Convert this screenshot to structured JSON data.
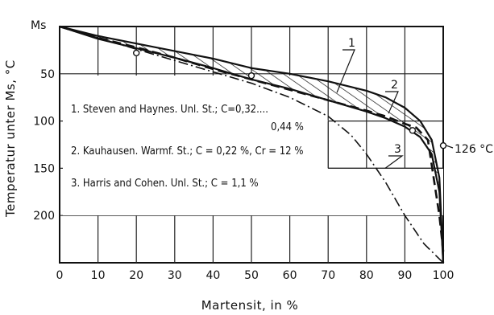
{
  "chart_data": {
    "type": "line",
    "xlabel": "Martensit, in %",
    "ylabel": "Temperatur unter Ms, °C",
    "y_top_label": "Ms",
    "xlim": [
      0,
      100
    ],
    "ylim": [
      0,
      250
    ],
    "y_inverted": true,
    "x_ticks": [
      0,
      10,
      20,
      30,
      40,
      50,
      60,
      70,
      80,
      90,
      100
    ],
    "y_ticks": [
      50,
      100,
      150,
      200
    ],
    "grid": true,
    "legend": [
      "1. Steven and Haynes. Unl. St.; C=0,32....",
      "0,44 %",
      "2. Kauhausen. Warmf. St.; C = 0,22 %, Cr = 12 %",
      "3. Harris and Cohen. Unl. St.; C = 1,1 %"
    ],
    "series": [
      {
        "name": "1",
        "style": "band-upper",
        "points": [
          [
            0,
            0
          ],
          [
            10,
            10
          ],
          [
            20,
            18
          ],
          [
            30,
            26
          ],
          [
            40,
            34
          ],
          [
            50,
            44
          ],
          [
            60,
            50
          ],
          [
            70,
            58
          ],
          [
            80,
            68
          ],
          [
            85,
            75
          ],
          [
            90,
            86
          ],
          [
            94,
            100
          ],
          [
            97,
            120
          ],
          [
            99,
            160
          ],
          [
            100,
            250
          ]
        ]
      },
      {
        "name": "1",
        "style": "band-lower",
        "points": [
          [
            0,
            0
          ],
          [
            10,
            13
          ],
          [
            20,
            23
          ],
          [
            30,
            33
          ],
          [
            40,
            44
          ],
          [
            50,
            56
          ],
          [
            60,
            66
          ],
          [
            70,
            78
          ],
          [
            80,
            90
          ],
          [
            85,
            97
          ],
          [
            90,
            106
          ],
          [
            94,
            117
          ],
          [
            97,
            135
          ],
          [
            99,
            175
          ],
          [
            100,
            250
          ]
        ]
      },
      {
        "name": "2",
        "style": "dashed",
        "points": [
          [
            0,
            0
          ],
          [
            10,
            12
          ],
          [
            20,
            22
          ],
          [
            30,
            33
          ],
          [
            40,
            45
          ],
          [
            50,
            56
          ],
          [
            60,
            67
          ],
          [
            70,
            78
          ],
          [
            80,
            89
          ],
          [
            85,
            95
          ],
          [
            90,
            103
          ],
          [
            93,
            107
          ],
          [
            96,
            120
          ],
          [
            99,
            200
          ],
          [
            100,
            238
          ]
        ]
      },
      {
        "name": "3",
        "style": "dash-dot",
        "points": [
          [
            0,
            0
          ],
          [
            10,
            12
          ],
          [
            20,
            24
          ],
          [
            30,
            36
          ],
          [
            40,
            48
          ],
          [
            50,
            60
          ],
          [
            60,
            75
          ],
          [
            70,
            95
          ],
          [
            76,
            115
          ],
          [
            80,
            135
          ],
          [
            85,
            165
          ],
          [
            90,
            200
          ],
          [
            95,
            230
          ],
          [
            100,
            250
          ]
        ]
      }
    ],
    "markers": [
      [
        20,
        28
      ],
      [
        50,
        52
      ],
      [
        92,
        110
      ],
      [
        100,
        126
      ]
    ],
    "annotations": {
      "label_1": "1",
      "label_2": "2",
      "label_3": "3",
      "value_126": "126 °C"
    }
  }
}
